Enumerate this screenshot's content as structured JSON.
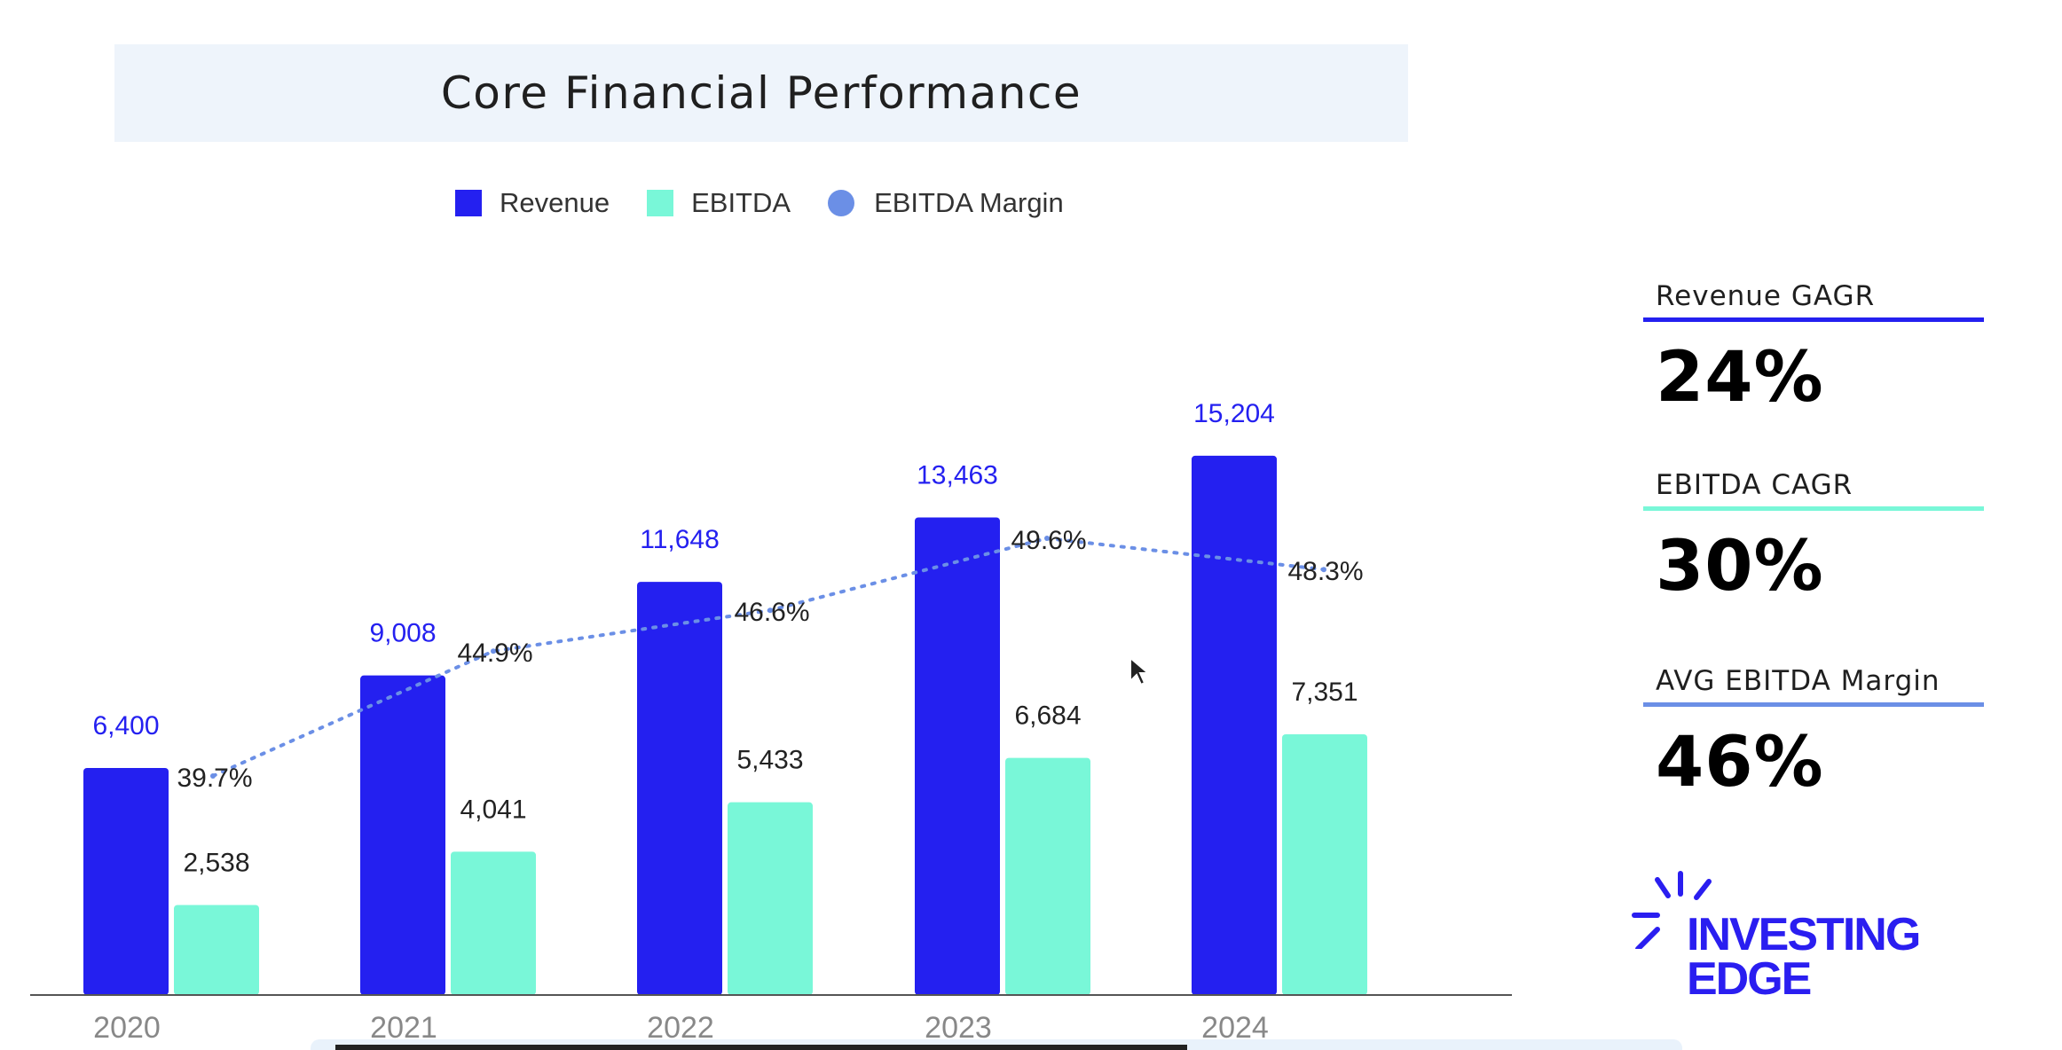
{
  "title": "Core Financial Performance",
  "legend": [
    {
      "label": "Revenue",
      "color": "#2420f0",
      "shape": "square"
    },
    {
      "label": "EBITDA",
      "color": "#79f7d8",
      "shape": "square"
    },
    {
      "label": "EBITDA Margin",
      "color": "#6b8fe6",
      "shape": "circle"
    }
  ],
  "chart_data": {
    "type": "bar",
    "title": "Core Financial Performance",
    "categories": [
      "2020",
      "2021",
      "2022",
      "2023",
      "2024"
    ],
    "series": [
      {
        "name": "Revenue",
        "type": "bar",
        "values": [
          6400,
          9008,
          11648,
          13463,
          15204
        ],
        "labels": [
          "6,400",
          "9,008",
          "11,648",
          "13,463",
          "15,204"
        ],
        "color": "#2420f0"
      },
      {
        "name": "EBITDA",
        "type": "bar",
        "values": [
          2538,
          4041,
          5433,
          6684,
          7351
        ],
        "labels": [
          "2,538",
          "4,041",
          "5,433",
          "6,684",
          "7,351"
        ],
        "color": "#79f7d8"
      },
      {
        "name": "EBITDA Margin",
        "type": "line",
        "line_style": "dotted",
        "values": [
          39.7,
          44.9,
          46.6,
          49.6,
          48.3
        ],
        "labels": [
          "39.7%",
          "44.9%",
          "46.6%",
          "49.6%",
          "48.3%"
        ],
        "color": "#6b8fe6"
      }
    ],
    "ylim": [
      0,
      16800
    ],
    "grid": false,
    "legend_position": "top"
  },
  "kpis": [
    {
      "label": "Revenue GAGR",
      "value": "24%",
      "color": "#2420f0"
    },
    {
      "label": "EBITDA CAGR",
      "value": "30%",
      "color": "#79f7d8"
    },
    {
      "label": "AVG EBITDA Margin",
      "value": "46%",
      "color": "#6b8fe6"
    }
  ],
  "logo": {
    "line1": "INVESTING",
    "line2": "EDGE",
    "color": "#2a1ef0"
  }
}
